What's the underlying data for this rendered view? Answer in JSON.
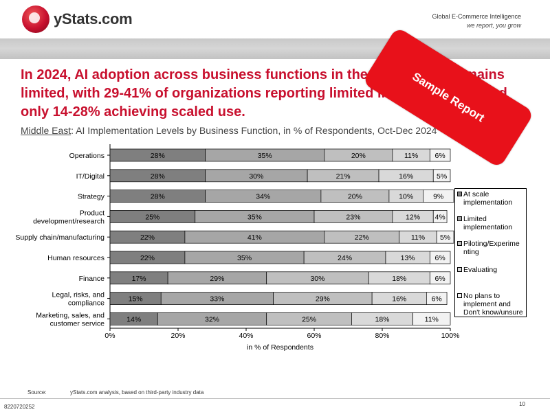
{
  "header": {
    "logo_text": "yStats.com",
    "tagline_line1": "Global E-Commerce Intelligence",
    "tagline_line2": "we report, you grow"
  },
  "headline": "In 2024, AI adoption across business functions in the Middle East remains limited, with 29-41% of organizations reporting limited implementation and only 14-28% achieving scaled use.",
  "subtitle": {
    "region": "Middle East",
    "text": ": AI Implementation Levels by Business Function, in % of Respondents, Oct-Dec 2024"
  },
  "stamp_text": "Sample Report",
  "chart_data": {
    "type": "bar",
    "orientation": "horizontal",
    "stacked": true,
    "categories": [
      "Operations",
      "IT/Digital",
      "Strategy",
      "Product development/research",
      "Supply chain/manufacturing",
      "Human resources",
      "Finance",
      "Legal, risks, and compliance",
      "Marketing, sales, and customer service"
    ],
    "series": [
      {
        "name": "At scale implementation",
        "color": "#7f7f7f",
        "values": [
          28,
          28,
          28,
          25,
          22,
          22,
          17,
          15,
          14
        ]
      },
      {
        "name": "Limited implementation",
        "color": "#a6a6a6",
        "values": [
          35,
          30,
          34,
          35,
          41,
          35,
          29,
          33,
          32
        ]
      },
      {
        "name": "Piloting/Experimenting",
        "color": "#bfbfbf",
        "values": [
          20,
          21,
          20,
          23,
          22,
          24,
          30,
          29,
          25
        ]
      },
      {
        "name": "Evaluating",
        "color": "#d9d9d9",
        "values": [
          11,
          16,
          10,
          12,
          11,
          13,
          18,
          16,
          18
        ]
      },
      {
        "name": "No plans to implement and Don't know/unsure",
        "color": "#f2f2f2",
        "values": [
          6,
          5,
          9,
          4,
          5,
          6,
          6,
          6,
          11
        ]
      }
    ],
    "xlabel": "in % of Respondents",
    "xlim": [
      0,
      100
    ],
    "xticks": [
      "0%",
      "20%",
      "40%",
      "60%",
      "80%",
      "100%"
    ],
    "grid": false,
    "legend_position": "right"
  },
  "legend": [
    "At scale implementation",
    "Limited implementation",
    "Piloting/Experime nting",
    "Evaluating",
    "No plans to implement and Don't know/unsure"
  ],
  "footer": {
    "source_label": "Source:",
    "source_text": "yStats.com analysis, based on third-party industry data",
    "code": "8220720252",
    "page": "10"
  }
}
